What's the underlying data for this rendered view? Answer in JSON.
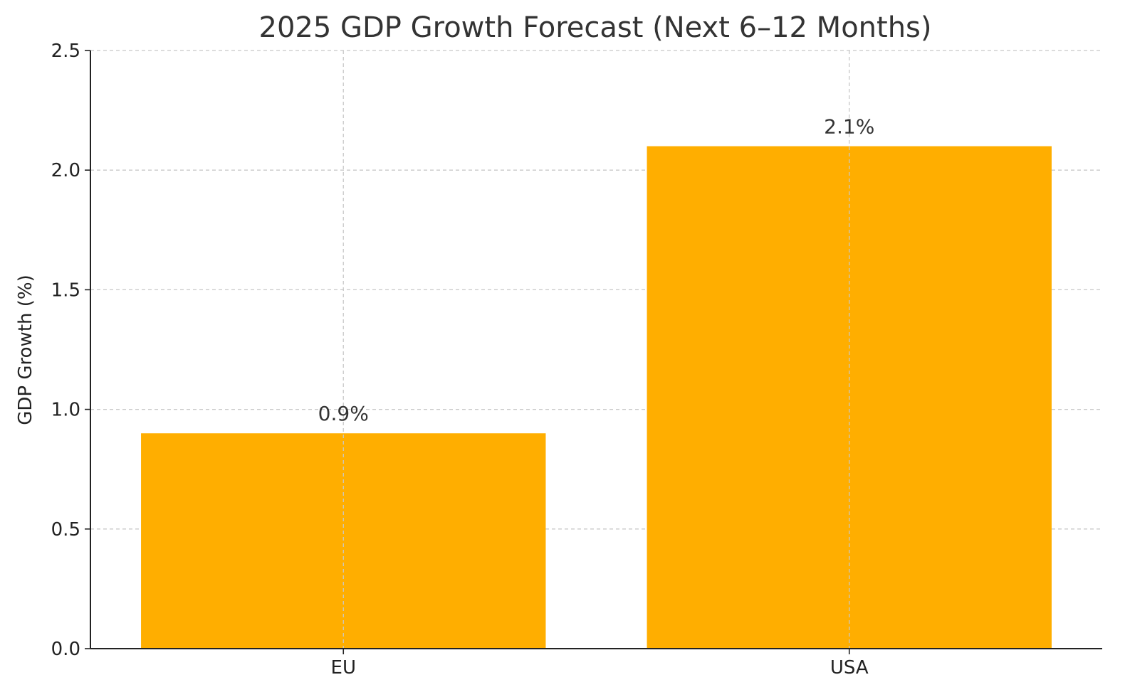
{
  "chart_data": {
    "type": "bar",
    "title": "2025 GDP Growth Forecast (Next 6–12 Months)",
    "xlabel": "",
    "ylabel": "GDP Growth (%)",
    "categories": [
      "EU",
      "USA"
    ],
    "values": [
      0.9,
      2.1
    ],
    "value_labels": [
      "0.9%",
      "2.1%"
    ],
    "ylim": [
      0,
      2.5
    ],
    "yticks": [
      0.0,
      0.5,
      1.0,
      1.5,
      2.0,
      2.5
    ],
    "ytick_labels": [
      "0.0",
      "0.5",
      "1.0",
      "1.5",
      "2.0",
      "2.5"
    ],
    "grid": true,
    "grid_style": "dashed",
    "legend": false,
    "bar_color": "#FFAE00"
  }
}
